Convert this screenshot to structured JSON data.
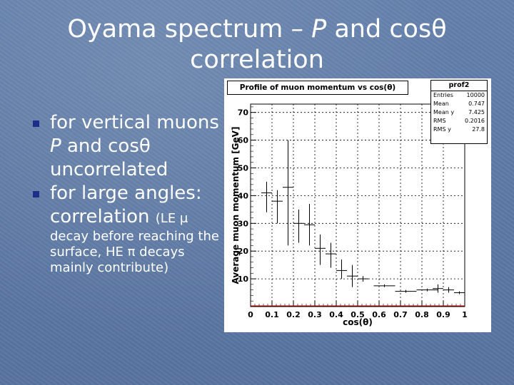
{
  "slide": {
    "title_line1_a": "Oyama spectrum – ",
    "title_line1_P": "P",
    "title_line1_b": " and cosθ",
    "title_line2": "correlation",
    "bullet1_a": "for vertical muons ",
    "bullet1_P": "P",
    "bullet1_b": " and cosθ uncorrelated",
    "bullet2_a": "for large angles: correlation ",
    "bullet2_small": "(LE μ",
    "note": "decay before reaching the surface, HE π decays mainly contribute)"
  },
  "colors": {
    "bullet": "#1b2f8a",
    "text": "#ffffff"
  },
  "plot": {
    "stats": {
      "name": "prof2",
      "rows": [
        {
          "label": "Entries",
          "value": "10000"
        },
        {
          "label": "Mean",
          "value": "0.747"
        },
        {
          "label": "Mean y",
          "value": "7.425"
        },
        {
          "label": "RMS",
          "value": "0.2016"
        },
        {
          "label": "RMS y",
          "value": "27.8"
        }
      ]
    }
  },
  "chart_data": {
    "type": "scatter",
    "title": "Profile of muon momentum vs cos(θ)",
    "xlabel": "cos(θ)",
    "ylabel": "Average muon momentum [GeV]",
    "xlim": [
      0,
      1
    ],
    "ylim": [
      0,
      73
    ],
    "xticks": [
      "0",
      "0.1",
      "0.2",
      "0.3",
      "0.4",
      "0.5",
      "0.6",
      "0.7",
      "0.8",
      "0.9",
      "1"
    ],
    "yticks": [
      "10",
      "20",
      "30",
      "40",
      "50",
      "60",
      "70"
    ],
    "grid": true,
    "points": [
      {
        "x": 0.075,
        "y": 41,
        "xerr": 0.025,
        "ylo": 34,
        "yhi": 45
      },
      {
        "x": 0.125,
        "y": 38,
        "xerr": 0.025,
        "ylo": 30,
        "yhi": 42
      },
      {
        "x": 0.175,
        "y": 43,
        "xerr": 0.025,
        "ylo": 22,
        "yhi": 60
      },
      {
        "x": 0.225,
        "y": 30,
        "xerr": 0.025,
        "ylo": 23,
        "yhi": 35
      },
      {
        "x": 0.275,
        "y": 29.5,
        "xerr": 0.025,
        "ylo": 22,
        "yhi": 37
      },
      {
        "x": 0.325,
        "y": 21,
        "xerr": 0.025,
        "ylo": 15,
        "yhi": 26
      },
      {
        "x": 0.375,
        "y": 19,
        "xerr": 0.025,
        "ylo": 14,
        "yhi": 23
      },
      {
        "x": 0.425,
        "y": 13,
        "xerr": 0.025,
        "ylo": 10,
        "yhi": 17
      },
      {
        "x": 0.475,
        "y": 11,
        "xerr": 0.025,
        "ylo": 7,
        "yhi": 15
      },
      {
        "x": 0.525,
        "y": 10,
        "xerr": 0.025,
        "ylo": 9,
        "yhi": 11
      },
      {
        "x": 0.625,
        "y": 7.5,
        "xerr": 0.05,
        "ylo": 7,
        "yhi": 8
      },
      {
        "x": 0.725,
        "y": 5.5,
        "xerr": 0.05,
        "ylo": 5,
        "yhi": 6
      },
      {
        "x": 0.825,
        "y": 6,
        "xerr": 0.05,
        "ylo": 5.5,
        "yhi": 6.5
      },
      {
        "x": 0.875,
        "y": 6.5,
        "xerr": 0.025,
        "ylo": 5,
        "yhi": 8
      },
      {
        "x": 0.925,
        "y": 6,
        "xerr": 0.025,
        "ylo": 5,
        "yhi": 7
      },
      {
        "x": 0.975,
        "y": 5,
        "xerr": 0.025,
        "ylo": 4.5,
        "yhi": 5.5
      }
    ]
  }
}
